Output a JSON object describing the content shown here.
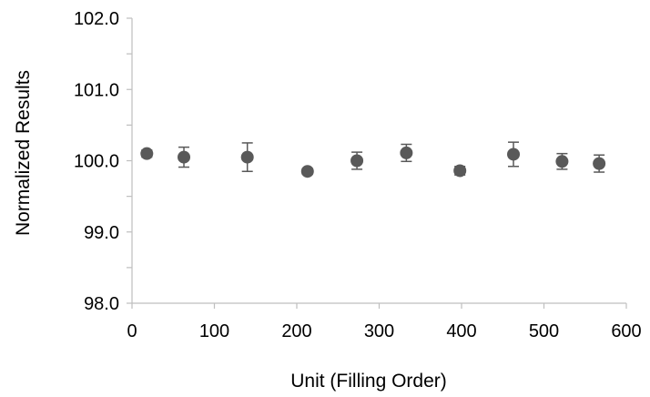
{
  "chart_data": {
    "type": "scatter",
    "title": "",
    "xlabel": "Unit (Filling Order)",
    "ylabel": "Normalized Results",
    "xlim": [
      0,
      600
    ],
    "ylim": [
      98.0,
      102.0
    ],
    "x_ticks": [
      0,
      100,
      200,
      300,
      400,
      500,
      600
    ],
    "y_ticks": [
      98.0,
      99.0,
      100.0,
      101.0,
      102.0
    ],
    "x_tick_labels": [
      "0",
      "100",
      "200",
      "300",
      "400",
      "500",
      "600"
    ],
    "y_tick_labels": [
      "98.0",
      "99.0",
      "100.0",
      "101.0",
      "102.0"
    ],
    "grid": false,
    "legend": "none",
    "marker_color": "#595959",
    "axis_color": "#bfbfbf",
    "points": [
      {
        "x": 18,
        "y": 100.1,
        "err": 0.05
      },
      {
        "x": 63,
        "y": 100.05,
        "err": 0.14
      },
      {
        "x": 140,
        "y": 100.05,
        "err": 0.2
      },
      {
        "x": 213,
        "y": 99.85,
        "err": 0.04
      },
      {
        "x": 273,
        "y": 100.0,
        "err": 0.12
      },
      {
        "x": 333,
        "y": 100.11,
        "err": 0.12
      },
      {
        "x": 398,
        "y": 99.86,
        "err": 0.06
      },
      {
        "x": 463,
        "y": 100.09,
        "err": 0.17
      },
      {
        "x": 522,
        "y": 99.99,
        "err": 0.11
      },
      {
        "x": 567,
        "y": 99.96,
        "err": 0.12
      }
    ]
  }
}
